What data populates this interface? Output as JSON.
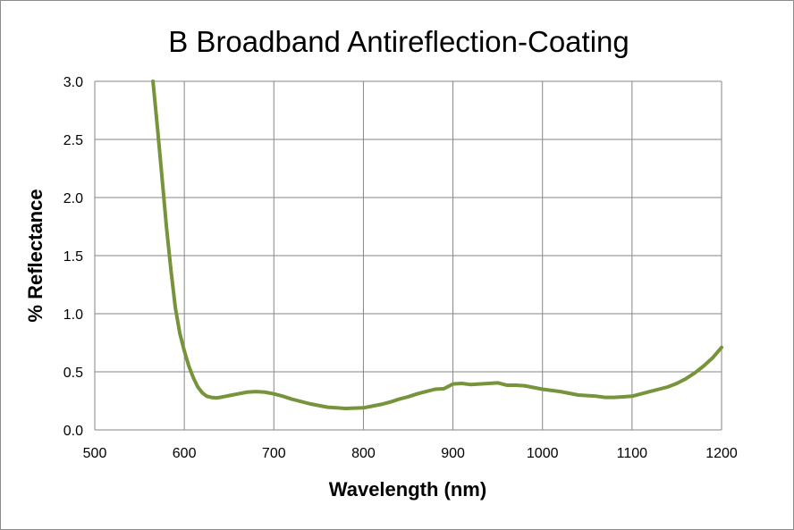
{
  "chart_data": {
    "type": "line",
    "title": "B Broadband Antireflection-Coating",
    "xlabel": "Wavelength (nm)",
    "ylabel": "% Reflectance",
    "xlim": [
      500,
      1200
    ],
    "ylim": [
      0,
      3.0
    ],
    "x_ticks": [
      "500",
      "600",
      "700",
      "800",
      "900",
      "1000",
      "1100",
      "1200"
    ],
    "y_ticks": [
      "0.0",
      "0.5",
      "1.0",
      "1.5",
      "2.0",
      "2.5",
      "3.0"
    ],
    "grid": true,
    "legend": "none",
    "colors": {
      "line": "#77933c",
      "grid": "#868686",
      "border": "#8c8c8c"
    },
    "series": [
      {
        "x": [
          565,
          570,
          575,
          580,
          585,
          590,
          595,
          600,
          605,
          610,
          615,
          620,
          625,
          630,
          635,
          640,
          650,
          660,
          670,
          680,
          690,
          700,
          710,
          720,
          740,
          760,
          780,
          800,
          810,
          820,
          830,
          840,
          850,
          860,
          870,
          880,
          890,
          900,
          910,
          920,
          930,
          940,
          950,
          960,
          970,
          980,
          1000,
          1020,
          1040,
          1060,
          1070,
          1080,
          1090,
          1100,
          1110,
          1120,
          1130,
          1140,
          1150,
          1160,
          1170,
          1180,
          1190,
          1200
        ],
        "y": [
          3.0,
          2.6,
          2.18,
          1.75,
          1.38,
          1.05,
          0.83,
          0.68,
          0.55,
          0.45,
          0.37,
          0.32,
          0.29,
          0.28,
          0.275,
          0.28,
          0.295,
          0.31,
          0.325,
          0.33,
          0.325,
          0.31,
          0.29,
          0.265,
          0.225,
          0.195,
          0.185,
          0.19,
          0.205,
          0.22,
          0.24,
          0.265,
          0.285,
          0.31,
          0.33,
          0.35,
          0.355,
          0.395,
          0.4,
          0.39,
          0.395,
          0.4,
          0.405,
          0.385,
          0.385,
          0.38,
          0.35,
          0.33,
          0.3,
          0.29,
          0.28,
          0.28,
          0.285,
          0.29,
          0.31,
          0.33,
          0.35,
          0.37,
          0.4,
          0.44,
          0.49,
          0.55,
          0.62,
          0.71
        ]
      }
    ]
  }
}
